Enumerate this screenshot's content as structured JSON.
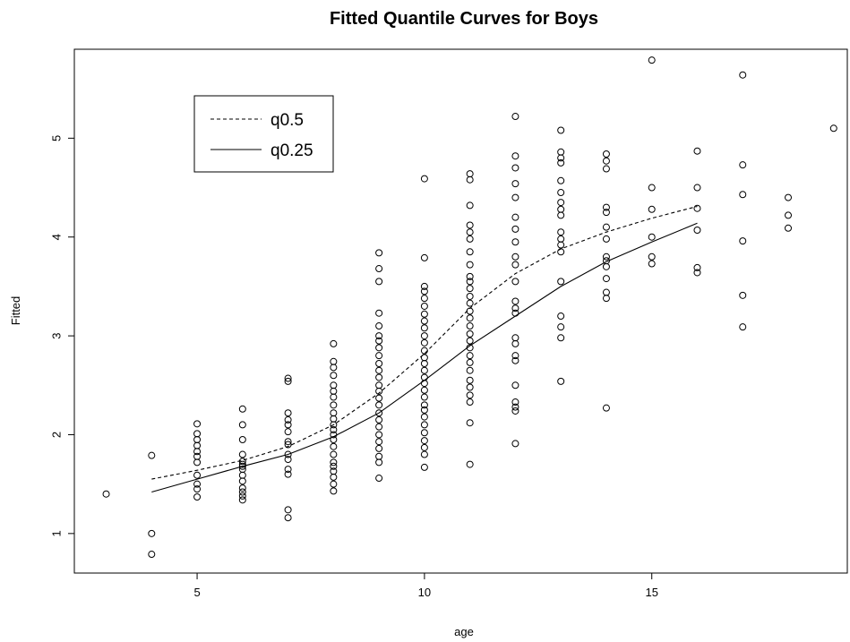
{
  "chart_data": {
    "type": "scatter",
    "title": "Fitted Quantile Curves for Boys",
    "xlabel": "age",
    "ylabel": "Fitted",
    "xlim": [
      2.3,
      19.3
    ],
    "ylim": [
      0.6,
      5.9
    ],
    "xticks": [
      5,
      10,
      15
    ],
    "yticks": [
      1,
      2,
      3,
      4,
      5
    ],
    "grid": false,
    "legend": {
      "position": "top-left",
      "entries": [
        {
          "name": "q0.5",
          "style": "dashed"
        },
        {
          "name": "q0.25",
          "style": "solid"
        }
      ]
    },
    "points": [
      {
        "x": 3,
        "y": 1.4
      },
      {
        "x": 4,
        "y": 1.79
      },
      {
        "x": 4,
        "y": 1.0
      },
      {
        "x": 4,
        "y": 0.79
      },
      {
        "x": 5,
        "y": 2.11
      },
      {
        "x": 5,
        "y": 2.01
      },
      {
        "x": 5,
        "y": 1.95
      },
      {
        "x": 5,
        "y": 1.89
      },
      {
        "x": 5,
        "y": 1.83
      },
      {
        "x": 5,
        "y": 1.78
      },
      {
        "x": 5,
        "y": 1.72
      },
      {
        "x": 5,
        "y": 1.59
      },
      {
        "x": 5,
        "y": 1.5
      },
      {
        "x": 5,
        "y": 1.45
      },
      {
        "x": 5,
        "y": 1.37
      },
      {
        "x": 6,
        "y": 2.26
      },
      {
        "x": 6,
        "y": 2.1
      },
      {
        "x": 6,
        "y": 1.95
      },
      {
        "x": 6,
        "y": 1.8
      },
      {
        "x": 6,
        "y": 1.73
      },
      {
        "x": 6,
        "y": 1.7
      },
      {
        "x": 6,
        "y": 1.68
      },
      {
        "x": 6,
        "y": 1.65
      },
      {
        "x": 6,
        "y": 1.59
      },
      {
        "x": 6,
        "y": 1.53
      },
      {
        "x": 6,
        "y": 1.46
      },
      {
        "x": 6,
        "y": 1.42
      },
      {
        "x": 6,
        "y": 1.38
      },
      {
        "x": 6,
        "y": 1.34
      },
      {
        "x": 7,
        "y": 2.57
      },
      {
        "x": 7,
        "y": 2.54
      },
      {
        "x": 7,
        "y": 2.22
      },
      {
        "x": 7,
        "y": 2.15
      },
      {
        "x": 7,
        "y": 2.1
      },
      {
        "x": 7,
        "y": 2.03
      },
      {
        "x": 7,
        "y": 1.93
      },
      {
        "x": 7,
        "y": 1.9
      },
      {
        "x": 7,
        "y": 1.8
      },
      {
        "x": 7,
        "y": 1.75
      },
      {
        "x": 7,
        "y": 1.65
      },
      {
        "x": 7,
        "y": 1.6
      },
      {
        "x": 7,
        "y": 1.24
      },
      {
        "x": 7,
        "y": 1.16
      },
      {
        "x": 8,
        "y": 2.92
      },
      {
        "x": 8,
        "y": 2.74
      },
      {
        "x": 8,
        "y": 2.68
      },
      {
        "x": 8,
        "y": 2.6
      },
      {
        "x": 8,
        "y": 2.5
      },
      {
        "x": 8,
        "y": 2.44
      },
      {
        "x": 8,
        "y": 2.38
      },
      {
        "x": 8,
        "y": 2.3
      },
      {
        "x": 8,
        "y": 2.22
      },
      {
        "x": 8,
        "y": 2.16
      },
      {
        "x": 8,
        "y": 2.1
      },
      {
        "x": 8,
        "y": 2.05
      },
      {
        "x": 8,
        "y": 2.0
      },
      {
        "x": 8,
        "y": 1.95
      },
      {
        "x": 8,
        "y": 1.88
      },
      {
        "x": 8,
        "y": 1.8
      },
      {
        "x": 8,
        "y": 1.72
      },
      {
        "x": 8,
        "y": 1.68
      },
      {
        "x": 8,
        "y": 1.63
      },
      {
        "x": 8,
        "y": 1.57
      },
      {
        "x": 8,
        "y": 1.5
      },
      {
        "x": 8,
        "y": 1.43
      },
      {
        "x": 9,
        "y": 3.84
      },
      {
        "x": 9,
        "y": 3.68
      },
      {
        "x": 9,
        "y": 3.55
      },
      {
        "x": 9,
        "y": 3.23
      },
      {
        "x": 9,
        "y": 3.1
      },
      {
        "x": 9,
        "y": 3.0
      },
      {
        "x": 9,
        "y": 2.95
      },
      {
        "x": 9,
        "y": 2.88
      },
      {
        "x": 9,
        "y": 2.8
      },
      {
        "x": 9,
        "y": 2.72
      },
      {
        "x": 9,
        "y": 2.65
      },
      {
        "x": 9,
        "y": 2.58
      },
      {
        "x": 9,
        "y": 2.5
      },
      {
        "x": 9,
        "y": 2.44
      },
      {
        "x": 9,
        "y": 2.37
      },
      {
        "x": 9,
        "y": 2.3
      },
      {
        "x": 9,
        "y": 2.22
      },
      {
        "x": 9,
        "y": 2.15
      },
      {
        "x": 9,
        "y": 2.08
      },
      {
        "x": 9,
        "y": 2.0
      },
      {
        "x": 9,
        "y": 1.93
      },
      {
        "x": 9,
        "y": 1.86
      },
      {
        "x": 9,
        "y": 1.78
      },
      {
        "x": 9,
        "y": 1.72
      },
      {
        "x": 9,
        "y": 1.56
      },
      {
        "x": 10,
        "y": 4.59
      },
      {
        "x": 10,
        "y": 3.79
      },
      {
        "x": 10,
        "y": 3.5
      },
      {
        "x": 10,
        "y": 3.45
      },
      {
        "x": 10,
        "y": 3.38
      },
      {
        "x": 10,
        "y": 3.3
      },
      {
        "x": 10,
        "y": 3.22
      },
      {
        "x": 10,
        "y": 3.15
      },
      {
        "x": 10,
        "y": 3.08
      },
      {
        "x": 10,
        "y": 3.0
      },
      {
        "x": 10,
        "y": 2.93
      },
      {
        "x": 10,
        "y": 2.85
      },
      {
        "x": 10,
        "y": 2.78
      },
      {
        "x": 10,
        "y": 2.72
      },
      {
        "x": 10,
        "y": 2.65
      },
      {
        "x": 10,
        "y": 2.58
      },
      {
        "x": 10,
        "y": 2.52
      },
      {
        "x": 10,
        "y": 2.45
      },
      {
        "x": 10,
        "y": 2.38
      },
      {
        "x": 10,
        "y": 2.3
      },
      {
        "x": 10,
        "y": 2.25
      },
      {
        "x": 10,
        "y": 2.18
      },
      {
        "x": 10,
        "y": 2.1
      },
      {
        "x": 10,
        "y": 2.02
      },
      {
        "x": 10,
        "y": 1.94
      },
      {
        "x": 10,
        "y": 1.87
      },
      {
        "x": 10,
        "y": 1.8
      },
      {
        "x": 10,
        "y": 1.67
      },
      {
        "x": 11,
        "y": 4.64
      },
      {
        "x": 11,
        "y": 4.58
      },
      {
        "x": 11,
        "y": 4.32
      },
      {
        "x": 11,
        "y": 4.12
      },
      {
        "x": 11,
        "y": 4.05
      },
      {
        "x": 11,
        "y": 3.98
      },
      {
        "x": 11,
        "y": 3.85
      },
      {
        "x": 11,
        "y": 3.72
      },
      {
        "x": 11,
        "y": 3.6
      },
      {
        "x": 11,
        "y": 3.55
      },
      {
        "x": 11,
        "y": 3.48
      },
      {
        "x": 11,
        "y": 3.4
      },
      {
        "x": 11,
        "y": 3.33
      },
      {
        "x": 11,
        "y": 3.25
      },
      {
        "x": 11,
        "y": 3.18
      },
      {
        "x": 11,
        "y": 3.1
      },
      {
        "x": 11,
        "y": 3.02
      },
      {
        "x": 11,
        "y": 2.95
      },
      {
        "x": 11,
        "y": 2.88
      },
      {
        "x": 11,
        "y": 2.8
      },
      {
        "x": 11,
        "y": 2.73
      },
      {
        "x": 11,
        "y": 2.65
      },
      {
        "x": 11,
        "y": 2.55
      },
      {
        "x": 11,
        "y": 2.48
      },
      {
        "x": 11,
        "y": 2.4
      },
      {
        "x": 11,
        "y": 2.33
      },
      {
        "x": 11,
        "y": 2.12
      },
      {
        "x": 11,
        "y": 1.7
      },
      {
        "x": 12,
        "y": 5.22
      },
      {
        "x": 12,
        "y": 4.82
      },
      {
        "x": 12,
        "y": 4.7
      },
      {
        "x": 12,
        "y": 4.54
      },
      {
        "x": 12,
        "y": 4.4
      },
      {
        "x": 12,
        "y": 4.2
      },
      {
        "x": 12,
        "y": 4.08
      },
      {
        "x": 12,
        "y": 3.95
      },
      {
        "x": 12,
        "y": 3.8
      },
      {
        "x": 12,
        "y": 3.72
      },
      {
        "x": 12,
        "y": 3.55
      },
      {
        "x": 12,
        "y": 3.35
      },
      {
        "x": 12,
        "y": 3.28
      },
      {
        "x": 12,
        "y": 3.23
      },
      {
        "x": 12,
        "y": 2.98
      },
      {
        "x": 12,
        "y": 2.92
      },
      {
        "x": 12,
        "y": 2.8
      },
      {
        "x": 12,
        "y": 2.75
      },
      {
        "x": 12,
        "y": 2.5
      },
      {
        "x": 12,
        "y": 2.33
      },
      {
        "x": 12,
        "y": 2.28
      },
      {
        "x": 12,
        "y": 2.24
      },
      {
        "x": 12,
        "y": 1.91
      },
      {
        "x": 13,
        "y": 5.08
      },
      {
        "x": 13,
        "y": 4.86
      },
      {
        "x": 13,
        "y": 4.8
      },
      {
        "x": 13,
        "y": 4.75
      },
      {
        "x": 13,
        "y": 4.57
      },
      {
        "x": 13,
        "y": 4.45
      },
      {
        "x": 13,
        "y": 4.35
      },
      {
        "x": 13,
        "y": 4.28
      },
      {
        "x": 13,
        "y": 4.22
      },
      {
        "x": 13,
        "y": 4.05
      },
      {
        "x": 13,
        "y": 3.98
      },
      {
        "x": 13,
        "y": 3.92
      },
      {
        "x": 13,
        "y": 3.85
      },
      {
        "x": 13,
        "y": 3.55
      },
      {
        "x": 13,
        "y": 3.2
      },
      {
        "x": 13,
        "y": 3.09
      },
      {
        "x": 13,
        "y": 2.98
      },
      {
        "x": 13,
        "y": 2.54
      },
      {
        "x": 14,
        "y": 4.84
      },
      {
        "x": 14,
        "y": 4.77
      },
      {
        "x": 14,
        "y": 4.69
      },
      {
        "x": 14,
        "y": 4.3
      },
      {
        "x": 14,
        "y": 4.25
      },
      {
        "x": 14,
        "y": 4.1
      },
      {
        "x": 14,
        "y": 3.98
      },
      {
        "x": 14,
        "y": 3.8
      },
      {
        "x": 14,
        "y": 3.76
      },
      {
        "x": 14,
        "y": 3.7
      },
      {
        "x": 14,
        "y": 3.58
      },
      {
        "x": 14,
        "y": 3.44
      },
      {
        "x": 14,
        "y": 3.38
      },
      {
        "x": 14,
        "y": 2.27
      },
      {
        "x": 15,
        "y": 5.79
      },
      {
        "x": 15,
        "y": 4.5
      },
      {
        "x": 15,
        "y": 4.28
      },
      {
        "x": 15,
        "y": 4.0
      },
      {
        "x": 15,
        "y": 3.8
      },
      {
        "x": 15,
        "y": 3.73
      },
      {
        "x": 16,
        "y": 4.87
      },
      {
        "x": 16,
        "y": 4.5
      },
      {
        "x": 16,
        "y": 4.29
      },
      {
        "x": 16,
        "y": 4.07
      },
      {
        "x": 16,
        "y": 3.69
      },
      {
        "x": 16,
        "y": 3.64
      },
      {
        "x": 17,
        "y": 5.64
      },
      {
        "x": 17,
        "y": 4.73
      },
      {
        "x": 17,
        "y": 4.43
      },
      {
        "x": 17,
        "y": 3.96
      },
      {
        "x": 17,
        "y": 3.41
      },
      {
        "x": 17,
        "y": 3.09
      },
      {
        "x": 18,
        "y": 4.4
      },
      {
        "x": 18,
        "y": 4.22
      },
      {
        "x": 18,
        "y": 4.09
      },
      {
        "x": 19,
        "y": 5.1
      }
    ],
    "series": [
      {
        "name": "q0.5",
        "style": "dashed",
        "x": [
          4,
          5,
          6,
          7,
          8,
          9,
          10,
          11,
          12,
          13,
          14,
          15,
          16
        ],
        "y": [
          1.55,
          1.64,
          1.74,
          1.88,
          2.1,
          2.42,
          2.82,
          3.28,
          3.63,
          3.88,
          4.05,
          4.19,
          4.31
        ]
      },
      {
        "name": "q0.25",
        "style": "solid",
        "x": [
          4,
          5,
          6,
          7,
          8,
          9,
          10,
          11,
          12,
          13,
          14,
          15,
          16
        ],
        "y": [
          1.42,
          1.55,
          1.68,
          1.8,
          1.98,
          2.22,
          2.55,
          2.9,
          3.2,
          3.5,
          3.75,
          3.95,
          4.14
        ]
      }
    ]
  }
}
